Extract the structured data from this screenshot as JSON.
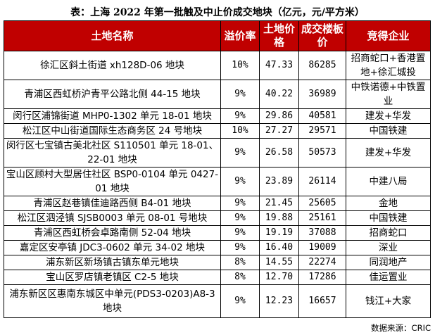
{
  "title": "表：上海 2022 年第一批触及中止价成交地块（亿元，元/平方米）",
  "header_color": "#c00000",
  "columns": [
    "土地名称",
    "溢价率",
    "土地价格",
    "成交楼板价",
    "竞得企业"
  ],
  "rows": [
    {
      "name": "徐汇区斜土街道 xh128D-06 地块",
      "premium": "10%",
      "price": "47.33",
      "floor_price": "86285",
      "winner": "招商蛇口+香港置地+徐汇城投",
      "lines": 2
    },
    {
      "name": "青浦区西虹桥沪青平公路北侧 44-15 地块",
      "premium": "9%",
      "price": "40.22",
      "floor_price": "36989",
      "winner": "中铁诺德+中铁置业",
      "lines": 2
    },
    {
      "name": "闵行区浦锦街道 MHP0-1302 单元 18-01 地块",
      "premium": "9%",
      "price": "29.86",
      "floor_price": "40581",
      "winner": "建发+华发",
      "lines": 1
    },
    {
      "name": "松江区中山街道国际生态商务区 24 号地块",
      "premium": "10%",
      "price": "27.27",
      "floor_price": "29571",
      "winner": "中国铁建",
      "lines": 1
    },
    {
      "name": "闵行区七宝镇古美北社区 S110501 单元 18-01、22-01 地块",
      "premium": "9%",
      "price": "26.58",
      "floor_price": "50573",
      "winner": "建发+华发",
      "lines": 2
    },
    {
      "name": "宝山区顾村大型居住社区 BSP0-0104 单元 0427-01 地块",
      "premium": "9%",
      "price": "23.89",
      "floor_price": "26114",
      "winner": "中建八局",
      "lines": 2
    },
    {
      "name": "青浦区赵巷镇佳迪路西侧 B4-01 地块",
      "premium": "9%",
      "price": "21.45",
      "floor_price": "25605",
      "winner": "金地",
      "lines": 1
    },
    {
      "name": "松江区泗泾镇 SJSB0003 单元 08-01 号地块",
      "premium": "9%",
      "price": "19.88",
      "floor_price": "25161",
      "winner": "中国铁建",
      "lines": 1
    },
    {
      "name": "青浦区西虹桥会卓路南侧 52-04 地块",
      "premium": "9%",
      "price": "19.19",
      "floor_price": "37088",
      "winner": "招商蛇口",
      "lines": 1
    },
    {
      "name": "嘉定区安亭镇 JDC3-0602 单元 34-02 地块",
      "premium": "9%",
      "price": "16.40",
      "floor_price": "19009",
      "winner": "深业",
      "lines": 1
    },
    {
      "name": "浦东新区新场镇古镇东单元地块",
      "premium": "8%",
      "price": "14.55",
      "floor_price": "22274",
      "winner": "同润地产",
      "lines": 1
    },
    {
      "name": "宝山区罗店镇老镇区 C2-5 地块",
      "premium": "8%",
      "price": "12.70",
      "floor_price": "17286",
      "winner": "佳运置业",
      "lines": 1
    },
    {
      "name": "浦东新区区惠南东城区中单元(PDS3-0203)A8-3 地块",
      "premium": "9%",
      "price": "12.23",
      "floor_price": "16657",
      "winner": "钱江+大家",
      "lines": 3
    }
  ],
  "source": "数据来源：CRIC"
}
